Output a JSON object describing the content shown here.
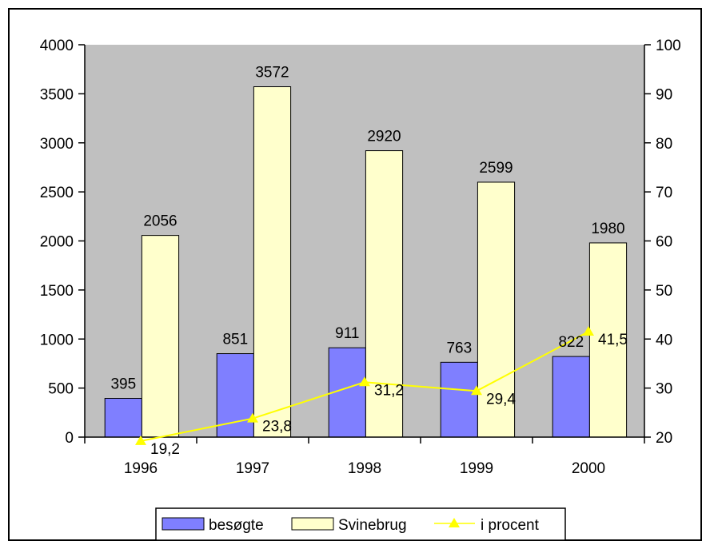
{
  "colors": {
    "plot_bg": "#c0c0c0",
    "series1_fill": "#7f7fff",
    "series2_fill": "#ffffcc",
    "line_color": "#ffff00",
    "axis": "#000000"
  },
  "chart_data": {
    "type": "bar",
    "categories": [
      "1996",
      "1997",
      "1998",
      "1999",
      "2000"
    ],
    "series": [
      {
        "name": "besøgte",
        "type": "bar",
        "axis": "left",
        "values": [
          395,
          851,
          911,
          763,
          822
        ],
        "labels": [
          "395",
          "851",
          "911",
          "763",
          "822"
        ]
      },
      {
        "name": "Svinebrug",
        "type": "bar",
        "axis": "left",
        "values": [
          2056,
          3572,
          2920,
          2599,
          1980
        ],
        "labels": [
          "2056",
          "3572",
          "2920",
          "2599",
          "1980"
        ]
      },
      {
        "name": "i procent",
        "type": "line",
        "axis": "right",
        "marker": "triangle",
        "values": [
          19.2,
          23.8,
          31.2,
          29.4,
          41.5
        ],
        "labels": [
          "19,2",
          "23,8",
          "31,2",
          "29,4",
          "41,5"
        ]
      }
    ],
    "ylim_left": [
      0,
      4000
    ],
    "ylim_right": [
      20,
      100
    ],
    "yticks_left": [
      "0",
      "500",
      "1000",
      "1500",
      "2000",
      "2500",
      "3000",
      "3500",
      "4000"
    ],
    "yticks_right": [
      "20",
      "30",
      "40",
      "50",
      "60",
      "70",
      "80",
      "90",
      "100"
    ],
    "grid": false,
    "legend": "bottom"
  }
}
